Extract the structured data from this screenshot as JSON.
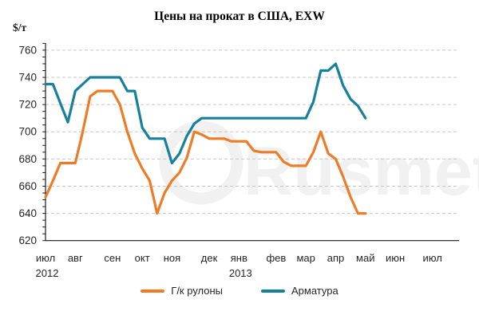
{
  "chart": {
    "title": "Цены на прокат в США, EXW",
    "unit_label": "$/т",
    "watermark": "Rusmet",
    "colors": {
      "hot_rolled": "#EE7B25",
      "rebar": "#16809D",
      "grid": "#C6C6C6",
      "axis": "#1A1A1A",
      "tick_text": "#262626",
      "watermark": "#F1F1F1"
    }
  },
  "legend": {
    "items": [
      {
        "label": "Г/к рулоны"
      },
      {
        "label": "Арматура"
      }
    ]
  },
  "chart_data": {
    "type": "line",
    "title": "Цены на прокат в США, EXW",
    "ylabel": "$/т",
    "ylim": [
      620,
      760
    ],
    "y_major_step": 20,
    "y_minor_step": 5,
    "grid": "horizontal-dashed",
    "legend_position": "bottom",
    "x_axis": {
      "unit": "weeks",
      "range_weeks": [
        0,
        55
      ],
      "month_ticks": [
        {
          "label": "июл",
          "year": "2012",
          "week": 0
        },
        {
          "label": "авг",
          "week": 4
        },
        {
          "label": "сен",
          "week": 9
        },
        {
          "label": "окт",
          "week": 13
        },
        {
          "label": "ноя",
          "week": 17
        },
        {
          "label": "дек",
          "week": 22
        },
        {
          "label": "янв",
          "year": "2013",
          "week": 26
        },
        {
          "label": "фев",
          "week": 31
        },
        {
          "label": "мар",
          "week": 35
        },
        {
          "label": "апр",
          "week": 39
        },
        {
          "label": "май",
          "week": 43
        },
        {
          "label": "июн",
          "week": 47
        },
        {
          "label": "июл",
          "week": 52
        }
      ]
    },
    "series": [
      {
        "name": "Г/к рулоны",
        "color": "#EE7B25",
        "start_week": 0,
        "week_step": 1,
        "values": [
          652,
          664,
          677,
          677,
          677,
          700,
          726,
          730,
          730,
          730,
          720,
          700,
          684,
          673,
          664,
          640,
          655,
          664,
          670,
          681,
          700,
          698,
          695,
          695,
          695,
          693,
          693,
          693,
          686,
          685,
          685,
          685,
          678,
          675,
          675,
          675,
          685,
          700,
          684,
          680,
          667,
          652,
          640,
          640
        ]
      },
      {
        "name": "Арматура",
        "color": "#16809D",
        "start_week": 0,
        "week_step": 1,
        "values": [
          735,
          735,
          721,
          707,
          730,
          735,
          740,
          740,
          740,
          740,
          740,
          730,
          730,
          703,
          695,
          695,
          695,
          677,
          684,
          697,
          706,
          710,
          710,
          710,
          710,
          710,
          710,
          710,
          710,
          710,
          710,
          710,
          710,
          710,
          710,
          710,
          722,
          745,
          745,
          750,
          734,
          724,
          719,
          710
        ]
      }
    ]
  }
}
